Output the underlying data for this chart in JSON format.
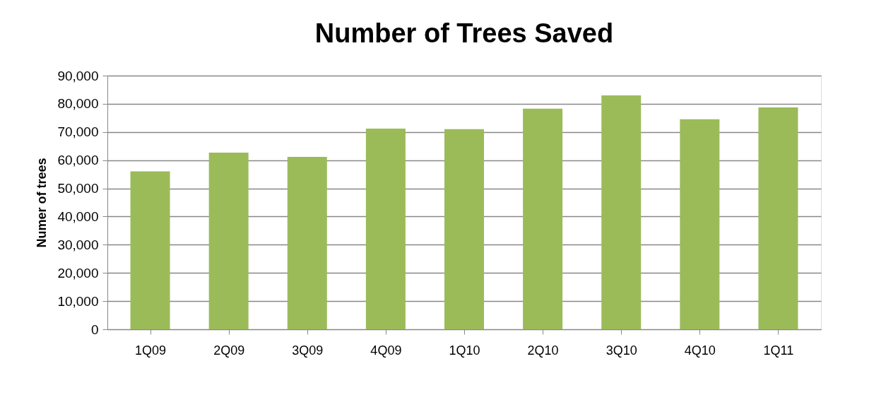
{
  "chart_data": {
    "type": "bar",
    "title": "Number of Trees Saved",
    "ylabel": "Numer of trees",
    "categories": [
      "1Q09",
      "2Q09",
      "3Q09",
      "4Q09",
      "1Q10",
      "2Q10",
      "3Q10",
      "4Q10",
      "1Q11"
    ],
    "values": [
      56000,
      62700,
      61200,
      71200,
      71000,
      78300,
      83000,
      74500,
      78700
    ],
    "color": "#9bbb59",
    "ylim": [
      0,
      90000
    ],
    "yticks": [
      0,
      {
        "value": 10000,
        "label": "10,000"
      },
      {
        "value": 20000,
        "label": "20,000"
      },
      {
        "value": 30000,
        "label": "30,000"
      },
      {
        "value": 40000,
        "label": "40,000"
      },
      {
        "value": 50000,
        "label": "50,000"
      },
      {
        "value": 60000,
        "label": "60,000"
      },
      {
        "value": 70000,
        "label": "70,000"
      },
      {
        "value": 80000,
        "label": "80,000"
      },
      {
        "value": 90000,
        "label": "90,000"
      }
    ],
    "grid": "y"
  }
}
